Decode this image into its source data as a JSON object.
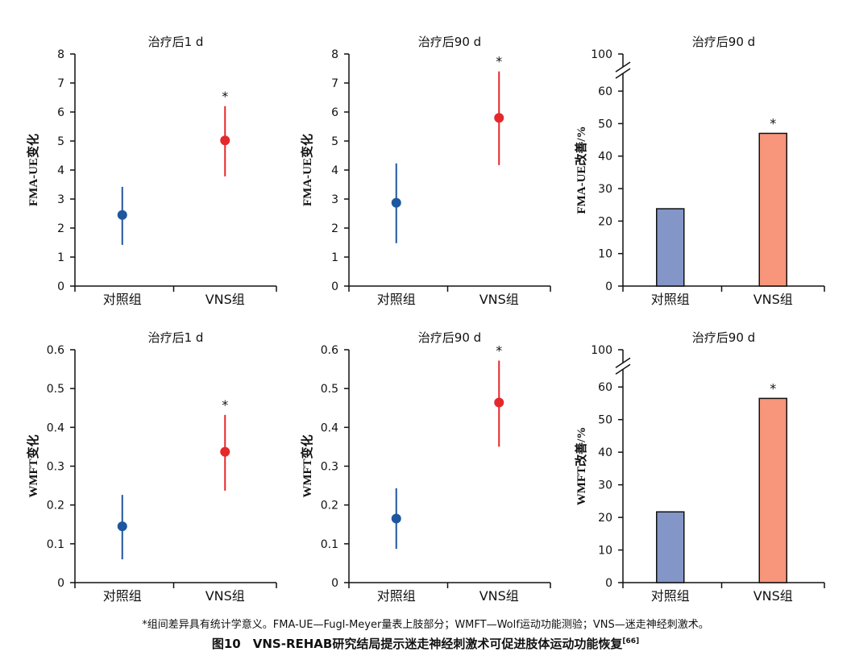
{
  "footnote": "*组间差异具有统计学意义。FMA-UE—Fugl-Meyer量表上肢部分；WMFT—Wolf运动功能测验；VNS—迷走神经刺激术。",
  "caption": {
    "text": "图10　VNS-REHAB研究结局提示迷走神经刺激术可促进肢体运动功能恢复",
    "ref": "[66]"
  },
  "chart_data": [
    {
      "type": "scatter",
      "title": "治疗后1 d",
      "ylabel": "FMA-UE变化",
      "categories": [
        "对照组",
        "VNS组"
      ],
      "values": [
        2.45,
        5.02
      ],
      "error_low": [
        1.42,
        3.78
      ],
      "error_high": [
        3.42,
        6.2
      ],
      "colors": [
        "#1f56a0",
        "#e5282c"
      ],
      "ylim": [
        0,
        8
      ],
      "yticks": [
        "0",
        "1",
        "2",
        "3",
        "4",
        "5",
        "6",
        "7",
        "8"
      ],
      "significance": [
        "",
        "*"
      ]
    },
    {
      "type": "scatter",
      "title": "治疗后90 d",
      "ylabel": "FMA-UE变化",
      "categories": [
        "对照组",
        "VNS组"
      ],
      "values": [
        2.87,
        5.8
      ],
      "error_low": [
        1.48,
        4.17
      ],
      "error_high": [
        4.23,
        7.4
      ],
      "colors": [
        "#1f56a0",
        "#e5282c"
      ],
      "ylim": [
        0,
        8
      ],
      "yticks": [
        "0",
        "1",
        "2",
        "3",
        "4",
        "5",
        "6",
        "7",
        "8"
      ],
      "significance": [
        "",
        "*"
      ]
    },
    {
      "type": "bar",
      "title": "治疗后90 d",
      "ylabel": "FMA-UE改善/%",
      "categories": [
        "对照组",
        "VNS组"
      ],
      "values": [
        23.8,
        47.0
      ],
      "colors": [
        "#8396c7",
        "#f7967a"
      ],
      "ylim": [
        0,
        100
      ],
      "axis_break": [
        60,
        100
      ],
      "yticks": [
        "0",
        "10",
        "20",
        "30",
        "40",
        "50",
        "60",
        "100"
      ],
      "significance": [
        "",
        "*"
      ]
    },
    {
      "type": "scatter",
      "title": "治疗后1 d",
      "ylabel": "WMFT变化",
      "categories": [
        "对照组",
        "VNS组"
      ],
      "values": [
        0.145,
        0.337
      ],
      "error_low": [
        0.06,
        0.237
      ],
      "error_high": [
        0.226,
        0.432
      ],
      "colors": [
        "#1f56a0",
        "#e5282c"
      ],
      "ylim": [
        0,
        0.6
      ],
      "yticks": [
        "0",
        "0.1",
        "0.2",
        "0.3",
        "0.4",
        "0.5",
        "0.6"
      ],
      "significance": [
        "",
        "*"
      ]
    },
    {
      "type": "scatter",
      "title": "治疗后90 d",
      "ylabel": "WMFT变化",
      "categories": [
        "对照组",
        "VNS组"
      ],
      "values": [
        0.165,
        0.464
      ],
      "error_low": [
        0.087,
        0.35
      ],
      "error_high": [
        0.243,
        0.572
      ],
      "colors": [
        "#1f56a0",
        "#e5282c"
      ],
      "ylim": [
        0,
        0.6
      ],
      "yticks": [
        "0",
        "0.1",
        "0.2",
        "0.3",
        "0.4",
        "0.5",
        "0.6"
      ],
      "significance": [
        "",
        "*"
      ]
    },
    {
      "type": "bar",
      "title": "治疗后90 d",
      "ylabel": "WMFT改善/%",
      "categories": [
        "对照组",
        "VNS组"
      ],
      "values": [
        21.7,
        56.5
      ],
      "colors": [
        "#8396c7",
        "#f7967a"
      ],
      "ylim": [
        0,
        100
      ],
      "axis_break": [
        60,
        100
      ],
      "yticks": [
        "0",
        "10",
        "20",
        "30",
        "40",
        "50",
        "60",
        "100"
      ],
      "significance": [
        "",
        "*"
      ]
    }
  ]
}
